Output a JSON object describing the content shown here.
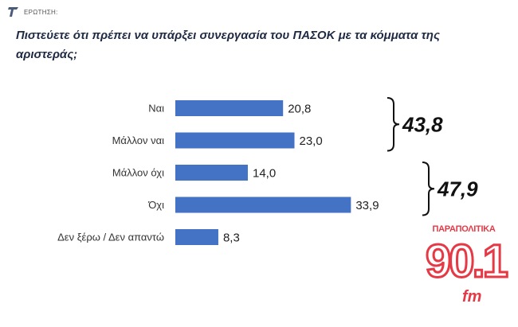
{
  "header": {
    "label": "ΕΡΩΤΗΣΗ:",
    "question": "Πιστεύετε ότι πρέπει να υπάρξει συνεργασία του ΠΑΣΟΚ με τα κόμματα της αριστεράς;"
  },
  "chart_data": {
    "type": "bar",
    "orientation": "horizontal",
    "categories": [
      "Ναι",
      "Μάλλον ναι",
      "Μάλλον όχι",
      "Όχι",
      "Δεν ξέρω / Δεν απαντώ"
    ],
    "values": [
      20.8,
      23.0,
      14.0,
      33.9,
      8.3
    ],
    "value_labels": [
      "20,8",
      "23,0",
      "14,0",
      "33,9",
      "8,3"
    ],
    "bar_color": "#4472c4",
    "groups": [
      {
        "label": "43,8",
        "from": 0,
        "to": 1
      },
      {
        "label": "47,9",
        "from": 2,
        "to": 3
      }
    ],
    "xlim": [
      0,
      40
    ],
    "grid": false,
    "legend": "none"
  },
  "logo": {
    "top": "ΠΑΡΑΠΟΛΙΤΙΚΑ",
    "number": "90.1",
    "suffix": "fm",
    "color": "#e63946"
  }
}
